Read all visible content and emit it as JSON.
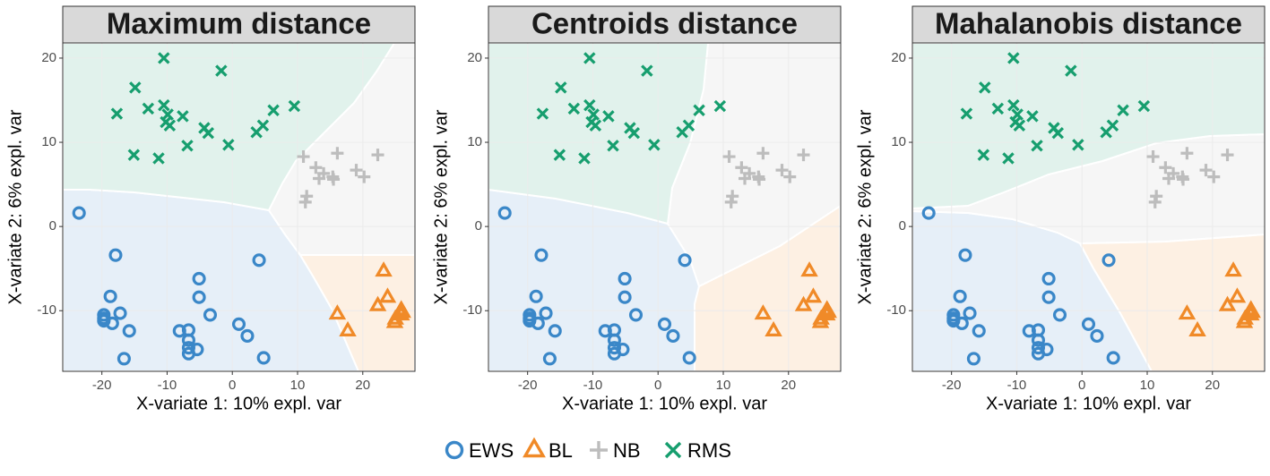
{
  "chart_data": [
    {
      "type": "scatter",
      "title": "Maximum distance",
      "x_label": "X-variate 1: 10% expl. var",
      "y_label": "X-variate 2: 6% expl. var",
      "xlim": [
        -26,
        28
      ],
      "ylim": [
        -17.2,
        21.8
      ],
      "xticks": [
        -20,
        -10,
        0,
        10,
        20
      ],
      "yticks": [
        -10,
        0,
        10,
        20
      ],
      "grid": true,
      "legend": "bottom",
      "series": [
        {
          "name": "EWS",
          "color": "#3a87c8",
          "marker": "circle",
          "values": [
            [
              -23.5,
              1.6
            ],
            [
              -17.9,
              -3.4
            ],
            [
              -18.7,
              -8.3
            ],
            [
              -19.7,
              -10.5
            ],
            [
              -19.7,
              -10.9
            ],
            [
              -19.7,
              -11.2
            ],
            [
              -18.4,
              -11.5
            ],
            [
              -17.2,
              -10.3
            ],
            [
              -15.8,
              -12.4
            ],
            [
              -16.6,
              -15.7
            ],
            [
              -8.1,
              -12.4
            ],
            [
              -6.7,
              -12.3
            ],
            [
              -6.7,
              -13.5
            ],
            [
              -6.7,
              -14.4
            ],
            [
              -6.7,
              -15.1
            ],
            [
              -5.4,
              -14.6
            ],
            [
              -5.1,
              -6.2
            ],
            [
              -5.1,
              -8.4
            ],
            [
              -3.4,
              -10.5
            ],
            [
              1.0,
              -11.6
            ],
            [
              2.3,
              -13.0
            ],
            [
              4.1,
              -4.0
            ],
            [
              4.8,
              -15.6
            ]
          ]
        },
        {
          "name": "BL",
          "color": "#f08a28",
          "marker": "triangle",
          "values": [
            [
              16.1,
              -10.4
            ],
            [
              17.7,
              -12.4
            ],
            [
              23.2,
              -5.3
            ],
            [
              23.8,
              -8.4
            ],
            [
              22.3,
              -9.4
            ],
            [
              25.9,
              -9.9
            ],
            [
              25.9,
              -10.5
            ],
            [
              25.0,
              -11.0
            ],
            [
              24.9,
              -11.4
            ],
            [
              26.1,
              -10.2
            ]
          ]
        },
        {
          "name": "NB",
          "color": "#bdbdbd",
          "marker": "plus",
          "values": [
            [
              10.9,
              8.3
            ],
            [
              12.8,
              7.0
            ],
            [
              14.0,
              6.3
            ],
            [
              13.3,
              5.7
            ],
            [
              15.5,
              5.6
            ],
            [
              15.4,
              5.9
            ],
            [
              16.1,
              8.7
            ],
            [
              19.0,
              6.7
            ],
            [
              20.2,
              5.9
            ],
            [
              22.3,
              8.5
            ],
            [
              11.4,
              3.6
            ],
            [
              11.2,
              2.9
            ]
          ]
        },
        {
          "name": "RMS",
          "color": "#169e6e",
          "marker": "x",
          "values": [
            [
              -10.5,
              20.0
            ],
            [
              -1.7,
              18.5
            ],
            [
              -14.9,
              16.5
            ],
            [
              -17.7,
              13.4
            ],
            [
              -12.9,
              14.0
            ],
            [
              -10.5,
              14.4
            ],
            [
              -9.9,
              13.3
            ],
            [
              -10.2,
              12.4
            ],
            [
              -9.6,
              12.0
            ],
            [
              -7.6,
              13.1
            ],
            [
              -4.3,
              11.7
            ],
            [
              -3.7,
              11.1
            ],
            [
              -6.9,
              9.6
            ],
            [
              -0.6,
              9.7
            ],
            [
              -15.1,
              8.5
            ],
            [
              -11.3,
              8.1
            ],
            [
              3.7,
              11.2
            ],
            [
              4.7,
              12.0
            ],
            [
              6.3,
              13.8
            ],
            [
              9.5,
              14.3
            ]
          ]
        }
      ]
    },
    {
      "type": "scatter",
      "title": "Centroids distance",
      "x_label": "X-variate 1: 10% expl. var",
      "y_label": "X-variate 2: 6% expl. var",
      "xlim": [
        -26,
        28
      ],
      "ylim": [
        -17.2,
        21.8
      ],
      "xticks": [
        -20,
        -10,
        0,
        10,
        20
      ],
      "yticks": [
        -10,
        0,
        10,
        20
      ],
      "grid": true,
      "series": [
        {
          "name": "EWS",
          "color": "#3a87c8",
          "marker": "circle",
          "values": [
            [
              -23.5,
              1.6
            ],
            [
              -17.9,
              -3.4
            ],
            [
              -18.7,
              -8.3
            ],
            [
              -19.7,
              -10.5
            ],
            [
              -19.7,
              -10.9
            ],
            [
              -19.7,
              -11.2
            ],
            [
              -18.4,
              -11.5
            ],
            [
              -17.2,
              -10.3
            ],
            [
              -15.8,
              -12.4
            ],
            [
              -16.6,
              -15.7
            ],
            [
              -8.1,
              -12.4
            ],
            [
              -6.7,
              -12.3
            ],
            [
              -6.7,
              -13.5
            ],
            [
              -6.7,
              -14.4
            ],
            [
              -6.7,
              -15.1
            ],
            [
              -5.4,
              -14.6
            ],
            [
              -5.1,
              -6.2
            ],
            [
              -5.1,
              -8.4
            ],
            [
              -3.4,
              -10.5
            ],
            [
              1.0,
              -11.6
            ],
            [
              2.3,
              -13.0
            ],
            [
              4.1,
              -4.0
            ],
            [
              4.8,
              -15.6
            ]
          ]
        },
        {
          "name": "BL",
          "color": "#f08a28",
          "marker": "triangle",
          "values": [
            [
              16.1,
              -10.4
            ],
            [
              17.7,
              -12.4
            ],
            [
              23.2,
              -5.3
            ],
            [
              23.8,
              -8.4
            ],
            [
              22.3,
              -9.4
            ],
            [
              25.9,
              -9.9
            ],
            [
              25.9,
              -10.5
            ],
            [
              25.0,
              -11.0
            ],
            [
              24.9,
              -11.4
            ],
            [
              26.1,
              -10.2
            ]
          ]
        },
        {
          "name": "NB",
          "color": "#bdbdbd",
          "marker": "plus",
          "values": [
            [
              10.9,
              8.3
            ],
            [
              12.8,
              7.0
            ],
            [
              14.0,
              6.3
            ],
            [
              13.3,
              5.7
            ],
            [
              15.5,
              5.6
            ],
            [
              15.4,
              5.9
            ],
            [
              16.1,
              8.7
            ],
            [
              19.0,
              6.7
            ],
            [
              20.2,
              5.9
            ],
            [
              22.3,
              8.5
            ],
            [
              11.4,
              3.6
            ],
            [
              11.2,
              2.9
            ]
          ]
        },
        {
          "name": "RMS",
          "color": "#169e6e",
          "marker": "x",
          "values": [
            [
              -10.5,
              20.0
            ],
            [
              -1.7,
              18.5
            ],
            [
              -14.9,
              16.5
            ],
            [
              -17.7,
              13.4
            ],
            [
              -12.9,
              14.0
            ],
            [
              -10.5,
              14.4
            ],
            [
              -9.9,
              13.3
            ],
            [
              -10.2,
              12.4
            ],
            [
              -9.6,
              12.0
            ],
            [
              -7.6,
              13.1
            ],
            [
              -4.3,
              11.7
            ],
            [
              -3.7,
              11.1
            ],
            [
              -6.9,
              9.6
            ],
            [
              -0.6,
              9.7
            ],
            [
              -15.1,
              8.5
            ],
            [
              -11.3,
              8.1
            ],
            [
              3.7,
              11.2
            ],
            [
              4.7,
              12.0
            ],
            [
              6.3,
              13.8
            ],
            [
              9.5,
              14.3
            ]
          ]
        }
      ]
    },
    {
      "type": "scatter",
      "title": "Mahalanobis distance",
      "x_label": "X-variate 1: 10% expl. var",
      "y_label": "X-variate 2: 6% expl. var",
      "xlim": [
        -26,
        28
      ],
      "ylim": [
        -17.2,
        21.8
      ],
      "xticks": [
        -20,
        -10,
        0,
        10,
        20
      ],
      "yticks": [
        -10,
        0,
        10,
        20
      ],
      "grid": true,
      "series": [
        {
          "name": "EWS",
          "color": "#3a87c8",
          "marker": "circle",
          "values": [
            [
              -23.5,
              1.6
            ],
            [
              -17.9,
              -3.4
            ],
            [
              -18.7,
              -8.3
            ],
            [
              -19.7,
              -10.5
            ],
            [
              -19.7,
              -10.9
            ],
            [
              -19.7,
              -11.2
            ],
            [
              -18.4,
              -11.5
            ],
            [
              -17.2,
              -10.3
            ],
            [
              -15.8,
              -12.4
            ],
            [
              -16.6,
              -15.7
            ],
            [
              -8.1,
              -12.4
            ],
            [
              -6.7,
              -12.3
            ],
            [
              -6.7,
              -13.5
            ],
            [
              -6.7,
              -14.4
            ],
            [
              -6.7,
              -15.1
            ],
            [
              -5.4,
              -14.6
            ],
            [
              -5.1,
              -6.2
            ],
            [
              -5.1,
              -8.4
            ],
            [
              -3.4,
              -10.5
            ],
            [
              1.0,
              -11.6
            ],
            [
              2.3,
              -13.0
            ],
            [
              4.1,
              -4.0
            ],
            [
              4.8,
              -15.6
            ]
          ]
        },
        {
          "name": "BL",
          "color": "#f08a28",
          "marker": "triangle",
          "values": [
            [
              16.1,
              -10.4
            ],
            [
              17.7,
              -12.4
            ],
            [
              23.2,
              -5.3
            ],
            [
              23.8,
              -8.4
            ],
            [
              22.3,
              -9.4
            ],
            [
              25.9,
              -9.9
            ],
            [
              25.9,
              -10.5
            ],
            [
              25.0,
              -11.0
            ],
            [
              24.9,
              -11.4
            ],
            [
              26.1,
              -10.2
            ]
          ]
        },
        {
          "name": "NB",
          "color": "#bdbdbd",
          "marker": "plus",
          "values": [
            [
              10.9,
              8.3
            ],
            [
              12.8,
              7.0
            ],
            [
              14.0,
              6.3
            ],
            [
              13.3,
              5.7
            ],
            [
              15.5,
              5.6
            ],
            [
              15.4,
              5.9
            ],
            [
              16.1,
              8.7
            ],
            [
              19.0,
              6.7
            ],
            [
              20.2,
              5.9
            ],
            [
              22.3,
              8.5
            ],
            [
              11.4,
              3.6
            ],
            [
              11.2,
              2.9
            ]
          ]
        },
        {
          "name": "RMS",
          "color": "#169e6e",
          "marker": "x",
          "values": [
            [
              -10.5,
              20.0
            ],
            [
              -1.7,
              18.5
            ],
            [
              -14.9,
              16.5
            ],
            [
              -17.7,
              13.4
            ],
            [
              -12.9,
              14.0
            ],
            [
              -10.5,
              14.4
            ],
            [
              -9.9,
              13.3
            ],
            [
              -10.2,
              12.4
            ],
            [
              -9.6,
              12.0
            ],
            [
              -7.6,
              13.1
            ],
            [
              -4.3,
              11.7
            ],
            [
              -3.7,
              11.1
            ],
            [
              -6.9,
              9.6
            ],
            [
              -0.6,
              9.7
            ],
            [
              -15.1,
              8.5
            ],
            [
              -11.3,
              8.1
            ],
            [
              3.7,
              11.2
            ],
            [
              4.7,
              12.0
            ],
            [
              6.3,
              13.8
            ],
            [
              9.5,
              14.3
            ]
          ]
        }
      ]
    }
  ]
}
